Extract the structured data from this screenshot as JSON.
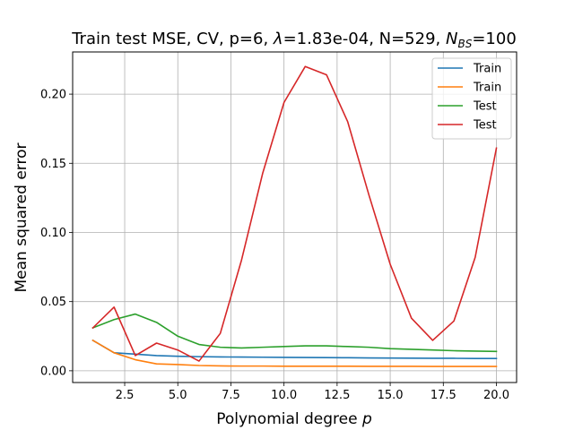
{
  "chart_data": {
    "type": "line",
    "title": "Train test MSE, CV, p=6, λ=1.83e-04, N=529, N_BS=100",
    "title_parts": {
      "prefix": "Train test MSE, CV, p=6, ",
      "lambda_symbol": "λ",
      "lambda_rest": "=1.83e-04, N=529, ",
      "nbs_main": "N",
      "nbs_sub": "BS",
      "nbs_rest": "=100"
    },
    "xlabel": "Polynomial degree",
    "xlabel_var": "p",
    "ylabel": "Mean squared error",
    "xlim": [
      0.05,
      20.95
    ],
    "ylim": [
      -0.0085,
      0.2305
    ],
    "xticks": [
      2.5,
      5.0,
      7.5,
      10.0,
      12.5,
      15.0,
      17.5,
      20.0
    ],
    "xtick_labels": [
      "2.5",
      "5.0",
      "7.5",
      "10.0",
      "12.5",
      "15.0",
      "17.5",
      "20.0"
    ],
    "yticks": [
      0.0,
      0.05,
      0.1,
      0.15,
      0.2
    ],
    "ytick_labels": [
      "0.00",
      "0.05",
      "0.10",
      "0.15",
      "0.20"
    ],
    "grid": true,
    "legend_position": "top-right",
    "x": [
      1,
      2,
      3,
      4,
      5,
      6,
      7,
      8,
      9,
      10,
      11,
      12,
      13,
      14,
      15,
      16,
      17,
      18,
      19,
      20
    ],
    "series": [
      {
        "name": "Train",
        "color": "#1f77b4",
        "values": [
          0.022,
          0.013,
          0.012,
          0.011,
          0.0105,
          0.0102,
          0.01,
          0.0099,
          0.0098,
          0.0097,
          0.0096,
          0.0095,
          0.0094,
          0.0093,
          0.0092,
          0.0091,
          0.009,
          0.009,
          0.0089,
          0.0089
        ]
      },
      {
        "name": "Train",
        "color": "#ff7f0e",
        "values": [
          0.022,
          0.013,
          0.008,
          0.005,
          0.0045,
          0.0038,
          0.0035,
          0.0034,
          0.0034,
          0.0033,
          0.0033,
          0.0033,
          0.0033,
          0.0032,
          0.0032,
          0.0032,
          0.0031,
          0.0031,
          0.0031,
          0.0031
        ]
      },
      {
        "name": "Test",
        "color": "#2ca02c",
        "values": [
          0.031,
          0.037,
          0.041,
          0.035,
          0.025,
          0.019,
          0.017,
          0.0165,
          0.017,
          0.0175,
          0.018,
          0.018,
          0.0175,
          0.017,
          0.016,
          0.0155,
          0.015,
          0.0145,
          0.0142,
          0.014
        ]
      },
      {
        "name": "Test",
        "color": "#d62728",
        "values": [
          0.031,
          0.046,
          0.011,
          0.02,
          0.015,
          0.007,
          0.027,
          0.08,
          0.143,
          0.194,
          0.22,
          0.214,
          0.18,
          0.127,
          0.077,
          0.038,
          0.022,
          0.036,
          0.082,
          0.161
        ]
      }
    ]
  }
}
